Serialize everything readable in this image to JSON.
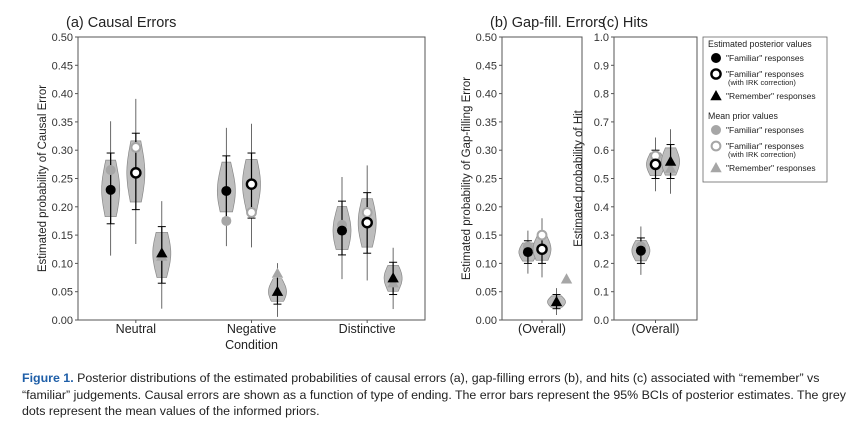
{
  "caption": {
    "label": "Figure 1.",
    "text": " Posterior distributions of the estimated probabilities of causal errors (a), gap-filling errors (b), and hits (c) associated with “remember” vs “familiar” judgements. Causal errors are shown as a function of type of ending. The error bars represent the 95% BCIs of posterior estimates. The grey dots represent the mean values of the informed priors."
  },
  "colors": {
    "violin": "#bdbdbd",
    "prior": "#a6a6a6",
    "axis": "#555555"
  },
  "legend": {
    "posterior_title": "Estimated posterior values",
    "posterior_items": [
      {
        "marker": "filled-circle",
        "label": "\"Familiar\" responses",
        "sublabel": ""
      },
      {
        "marker": "open-circle",
        "label": "\"Familiar\" responses",
        "sublabel": "(with IRK correction)"
      },
      {
        "marker": "triangle",
        "label": "\"Remember\" responses",
        "sublabel": ""
      }
    ],
    "prior_title": "Mean prior values",
    "prior_items": [
      {
        "marker": "grey-filled-circle",
        "label": "\"Familiar\" responses",
        "sublabel": ""
      },
      {
        "marker": "grey-open-circle",
        "label": "\"Familiar\" responses",
        "sublabel": "(with IRK correction)"
      },
      {
        "marker": "grey-triangle",
        "label": "\"Remember\" responses",
        "sublabel": ""
      }
    ]
  },
  "chart_data": [
    {
      "type": "violin",
      "title": "(a) Causal Errors",
      "xlabel": "Condition",
      "ylabel": "Estimated probability of Causal Error",
      "ylim": [
        0,
        0.5
      ],
      "yticks": [
        "0.00",
        "0.05",
        "0.10",
        "0.15",
        "0.20",
        "0.25",
        "0.30",
        "0.35",
        "0.40",
        "0.45",
        "0.50"
      ],
      "categories": [
        "Neutral",
        "Negative",
        "Distinctive"
      ],
      "series": [
        {
          "name": "\"Familiar\" responses",
          "marker": "filled-circle",
          "values": [
            0.23,
            0.228,
            0.158
          ],
          "ci_low": [
            0.17,
            0.18,
            0.115
          ],
          "ci_high": [
            0.295,
            0.29,
            0.21
          ],
          "prior": [
            0.265,
            0.175,
            0.168
          ]
        },
        {
          "name": "\"Familiar\" responses (with IRK correction)",
          "marker": "open-circle",
          "values": [
            0.26,
            0.24,
            0.172
          ],
          "ci_low": [
            0.195,
            0.18,
            0.118
          ],
          "ci_high": [
            0.33,
            0.295,
            0.225
          ],
          "prior": [
            0.305,
            0.19,
            0.19
          ]
        },
        {
          "name": "\"Remember\" responses",
          "marker": "triangle",
          "values": [
            0.118,
            0.05,
            0.074
          ],
          "ci_low": [
            0.065,
            0.028,
            0.045
          ],
          "ci_high": [
            0.165,
            0.078,
            0.102
          ],
          "prior": [
            0.112,
            0.082,
            0.065
          ]
        }
      ]
    },
    {
      "type": "violin",
      "title": "(b) Gap-fill. Errors",
      "xlabel": "",
      "ylabel": "Estimated probability of Gap-filling Error",
      "ylim": [
        0,
        0.5
      ],
      "yticks": [
        "0.00",
        "0.05",
        "0.10",
        "0.15",
        "0.20",
        "0.25",
        "0.30",
        "0.35",
        "0.40",
        "0.45",
        "0.50"
      ],
      "categories": [
        "(Overall)"
      ],
      "series": [
        {
          "name": "\"Familiar\" responses",
          "marker": "filled-circle",
          "values": [
            0.12
          ],
          "ci_low": [
            0.1
          ],
          "ci_high": [
            0.14
          ],
          "prior": [
            0.13
          ]
        },
        {
          "name": "\"Familiar\" responses (with IRK correction)",
          "marker": "open-circle",
          "values": [
            0.125
          ],
          "ci_low": [
            0.1
          ],
          "ci_high": [
            0.155
          ],
          "prior": [
            0.15
          ]
        },
        {
          "name": "\"Remember\" responses",
          "marker": "triangle",
          "values": [
            0.032
          ],
          "ci_low": [
            0.02
          ],
          "ci_high": [
            0.045
          ],
          "prior": [
            0.072
          ]
        }
      ]
    },
    {
      "type": "violin",
      "title": "(c) Hits",
      "xlabel": "",
      "ylabel": "Estimated probability of Hit",
      "ylim": [
        0,
        1.0
      ],
      "yticks": [
        "0.0",
        "0.1",
        "0.2",
        "0.3",
        "0.4",
        "0.5",
        "0.6",
        "0.7",
        "0.8",
        "0.9",
        "1.0"
      ],
      "categories": [
        "(Overall)"
      ],
      "series": [
        {
          "name": "\"Familiar\" responses",
          "marker": "filled-circle",
          "values": [
            0.245
          ],
          "ci_low": [
            0.2
          ],
          "ci_high": [
            0.29
          ],
          "prior": [
            0.26
          ]
        },
        {
          "name": "\"Familiar\" responses (with IRK correction)",
          "marker": "open-circle",
          "values": [
            0.55
          ],
          "ci_low": [
            0.5
          ],
          "ci_high": [
            0.6
          ],
          "prior": [
            0.58
          ]
        },
        {
          "name": "\"Remember\" responses",
          "marker": "triangle",
          "values": [
            0.56
          ],
          "ci_low": [
            0.5
          ],
          "ci_high": [
            0.62
          ],
          "prior": [
            0.535
          ]
        }
      ]
    }
  ]
}
